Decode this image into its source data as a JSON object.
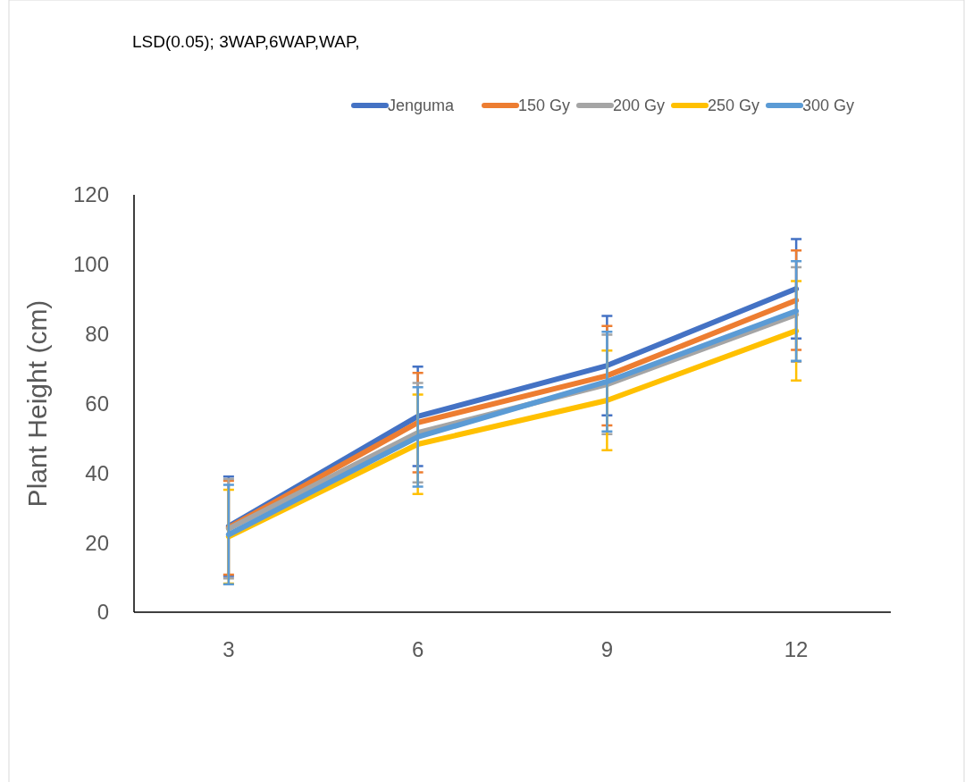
{
  "chart_data": {
    "type": "line",
    "title": "LSD(0.05); 3WAP,6WAP,WAP,",
    "ylabel": "Plant Height (cm)",
    "categories": [
      "3",
      "6",
      "9",
      "12"
    ],
    "ylim": [
      0,
      120
    ],
    "yticks": [
      0,
      20,
      40,
      60,
      80,
      100,
      120
    ],
    "grid": false,
    "legend": "top right",
    "marker": "none",
    "line_style": "solid",
    "series": [
      {
        "name": "Jenguma",
        "color": "#4472c4",
        "values": [
          24.7,
          56.3,
          70.9,
          93
        ],
        "errors": [
          14.3,
          14.3,
          14.3,
          14.3
        ]
      },
      {
        "name": "150 Gy",
        "color": "#ed7d31",
        "values": [
          24.3,
          54.5,
          68,
          89.7
        ],
        "errors": [
          13.5,
          14.3,
          14.3,
          14.3
        ]
      },
      {
        "name": "200 Gy",
        "color": "#a5a5a5",
        "values": [
          24,
          51.6,
          65.5,
          85.6
        ],
        "errors": [
          14.3,
          14.3,
          14.3,
          13.6
        ]
      },
      {
        "name": "250 Gy",
        "color": "#ffc000",
        "values": [
          21.7,
          48.3,
          60.9,
          80.9
        ],
        "errors": [
          13.5,
          14.3,
          14.3,
          14.3
        ]
      },
      {
        "name": "300 Gy",
        "color": "#5b9bd5",
        "values": [
          22.3,
          50.4,
          66.3,
          86.6
        ],
        "errors": [
          14.3,
          14.3,
          14.3,
          14.3
        ]
      }
    ]
  }
}
